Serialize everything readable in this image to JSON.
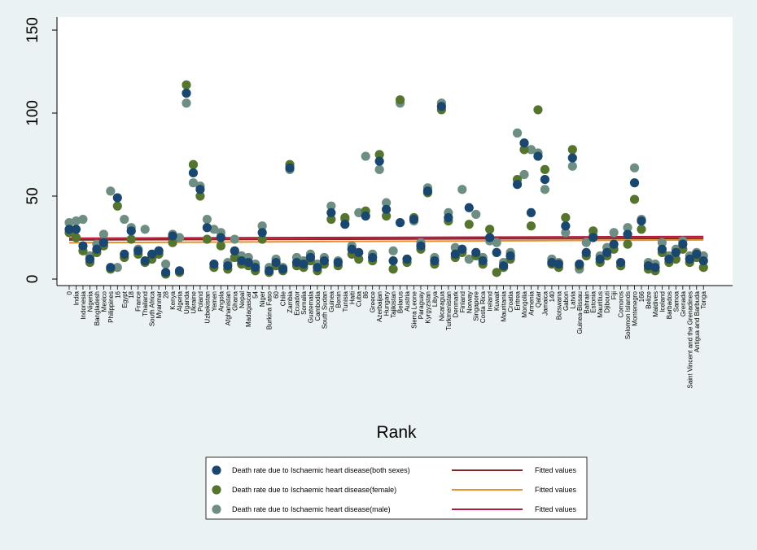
{
  "chart_data": {
    "type": "scatter",
    "title": "",
    "xlabel": "Rank",
    "ylabel": "",
    "ylim": [
      0,
      150
    ],
    "yticks": [
      0,
      50,
      100,
      150
    ],
    "grid": false,
    "legend_position": "bottom",
    "categories": [
      "0",
      "India",
      "Indonesia",
      "Nigeria",
      "Bangladesh",
      "Mexico",
      "Philippines",
      "16",
      "Egypt",
      "18",
      "France",
      "Thailand",
      "South Africa",
      "Myanmar",
      "28",
      "Kenya",
      "Algeria",
      "Uganda",
      "Ukraine",
      "Poland",
      "Uzbekistan",
      "Yemen",
      "Angola",
      "Afghanistan",
      "Ghana",
      "Nepal",
      "Madagascar",
      "54",
      "Niger",
      "Burkina Faso",
      "60",
      "Chile",
      "Zambia",
      "Ecuador",
      "Somalia",
      "Guatemala",
      "Cambodia",
      "South Sudan",
      "Guinea",
      "Benin",
      "Tunisia",
      "Haiti",
      "Cuba",
      "86",
      "Greece",
      "Azerbaijan",
      "Hungary",
      "Tajikistan",
      "Belarus",
      "Austria",
      "Sierra Leone",
      "Paraguay",
      "Kyrgyzstan",
      "Libya",
      "Nicaragua",
      "Turkmenistan",
      "Denmark",
      "Finland",
      "Norway",
      "Singapore",
      "Costa Rica",
      "Ireland",
      "Kuwait",
      "Mauritania",
      "Croatia",
      "Eritrea",
      "Mongolia",
      "Armenia",
      "Qatar",
      "Jamaica",
      "140",
      "Botswana",
      "Gabon",
      "Latvia",
      "Guinea-Bissau",
      "Bahrain",
      "Estonia",
      "Mauritius",
      "Djibouti",
      "Fiji",
      "Comoros",
      "Solomon Islands",
      "Montenegro",
      "166",
      "Belize",
      "Maldives",
      "Iceland",
      "Barbados",
      "Samoa",
      "Grenada",
      "Saint Vincent and the Grenadines",
      "Antigua and Barbuda",
      "Tonga"
    ],
    "series": [
      {
        "name": "Death rate due to Ischaemic heart disease(both sexes)",
        "color": "#1a476f",
        "values": [
          30,
          30,
          20,
          12,
          18,
          22,
          7,
          49,
          15,
          29,
          17,
          11,
          15,
          17,
          4,
          26,
          5,
          112,
          64,
          54,
          31,
          9,
          25,
          8,
          17,
          11,
          10,
          7,
          28,
          5,
          10,
          6,
          67,
          10,
          9,
          13,
          7,
          11,
          40,
          10,
          33,
          18,
          16,
          38,
          13,
          71,
          42,
          11,
          34,
          12,
          36,
          20,
          53,
          11,
          104,
          37,
          15,
          18,
          43,
          16,
          11,
          25,
          16,
          8,
          14,
          57,
          82,
          40,
          74,
          60,
          10,
          9,
          32,
          73,
          9,
          16,
          25,
          12,
          16,
          21,
          10,
          27,
          58,
          35,
          8,
          7,
          18,
          12,
          16,
          21,
          12,
          15,
          11
        ]
      },
      {
        "name": "Death rate due to Ischaemic heart disease(female)",
        "color": "#55752f",
        "values": [
          28,
          25,
          17,
          10,
          16,
          20,
          6,
          44,
          13,
          24,
          15,
          10,
          12,
          15,
          3,
          22,
          4,
          117,
          69,
          50,
          24,
          7,
          20,
          6,
          13,
          9,
          8,
          5,
          24,
          4,
          8,
          5,
          69,
          8,
          7,
          11,
          5,
          9,
          36,
          8,
          37,
          15,
          12,
          41,
          11,
          75,
          38,
          6,
          108,
          10,
          37,
          18,
          52,
          9,
          102,
          35,
          13,
          16,
          33,
          14,
          9,
          30,
          4,
          7,
          12,
          60,
          78,
          32,
          102,
          66,
          9,
          7,
          37,
          78,
          8,
          14,
          29,
          10,
          14,
          18,
          8,
          21,
          48,
          30,
          6,
          5,
          16,
          10,
          12,
          18,
          10,
          13,
          7
        ]
      },
      {
        "name": "Death rate due to Ischaemic heart disease(male)",
        "color": "#6e8e84",
        "values": [
          34,
          35,
          36,
          14,
          21,
          27,
          53,
          7,
          36,
          31,
          18,
          30,
          14,
          17,
          9,
          27,
          25,
          106,
          58,
          56,
          36,
          30,
          28,
          10,
          24,
          14,
          13,
          9,
          32,
          7,
          12,
          7,
          66,
          13,
          11,
          15,
          9,
          13,
          44,
          11,
          36,
          20,
          40,
          74,
          15,
          66,
          46,
          17,
          106,
          12,
          35,
          22,
          55,
          13,
          106,
          40,
          19,
          54,
          12,
          39,
          13,
          23,
          22,
          10,
          16,
          88,
          63,
          78,
          76,
          54,
          12,
          10,
          28,
          68,
          6,
          22,
          26,
          14,
          19,
          28,
          8,
          31,
          67,
          36,
          10,
          9,
          22,
          14,
          18,
          23,
          14,
          16,
          14
        ]
      }
    ],
    "fitted_lines": [
      {
        "name": "Fitted values",
        "color": "#8b2323",
        "y_start": 23.6,
        "y_end": 24.6
      },
      {
        "name": "Fitted values",
        "color": "#e8902b",
        "y_start": 21.9,
        "y_end": 23.6
      },
      {
        "name": "Fitted values",
        "color": "#b5173c",
        "y_start": 24.6,
        "y_end": 25.6
      }
    ]
  }
}
